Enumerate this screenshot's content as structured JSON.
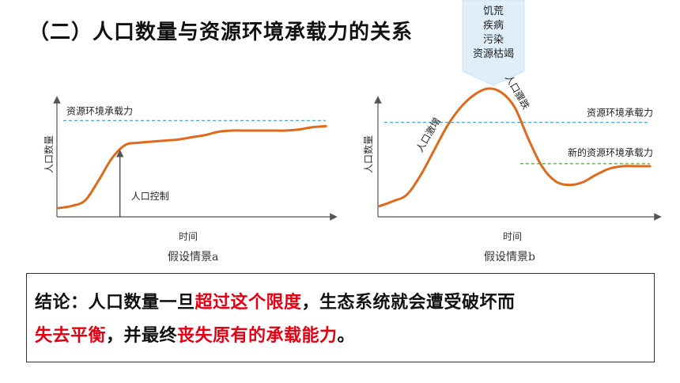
{
  "title": "（二）人口数量与资源环境承载力的关系",
  "callout": {
    "items": [
      "饥荒",
      "疾病",
      "污染",
      "资源枯竭"
    ],
    "bg_color": "#dfeef8"
  },
  "chart_data": [
    {
      "type": "line",
      "title": "假设情景a",
      "xlabel": "时间",
      "ylabel": "人口数量",
      "x": [
        0,
        5,
        10,
        15,
        20,
        25,
        30,
        35,
        40,
        45,
        50,
        55,
        60,
        65,
        70,
        75,
        80,
        85,
        90,
        95,
        100
      ],
      "series": [
        {
          "values": [
            5,
            7,
            12,
            30,
            50,
            62,
            64,
            65,
            66,
            67,
            69,
            71,
            74,
            75,
            75,
            75,
            75,
            75,
            76,
            78,
            79
          ],
          "color": "#e06a1b"
        }
      ],
      "reference_lines": [
        {
          "label": "资源环境承载力",
          "y": 84,
          "color": "#4aa8d8",
          "style": "dashed"
        }
      ],
      "annotations": [
        {
          "label": "人口控制",
          "x": 23
        }
      ],
      "ylim": [
        0,
        100
      ],
      "xlim": [
        0,
        100
      ]
    },
    {
      "type": "line",
      "title": "假设情景b",
      "xlabel": "时间",
      "ylabel": "人口数量",
      "x": [
        0,
        5,
        10,
        15,
        20,
        25,
        30,
        35,
        40,
        45,
        50,
        55,
        60,
        65,
        70,
        75,
        80,
        85,
        90,
        95,
        100
      ],
      "series": [
        {
          "values": [
            6,
            10,
            15,
            30,
            50,
            70,
            85,
            95,
            100,
            97,
            85,
            60,
            38,
            26,
            23,
            25,
            31,
            36,
            38,
            38,
            38
          ],
          "color": "#e06a1b"
        }
      ],
      "reference_lines": [
        {
          "label": "资源环境承载力",
          "y": 73,
          "color": "#4aa8d8",
          "style": "dashed"
        },
        {
          "label": "新的资源环境承载力",
          "y": 40,
          "color": "#6aa84f",
          "style": "dashed"
        }
      ],
      "annotations": [
        {
          "label": "人口激增",
          "x": 22
        },
        {
          "label": "人口骤跌",
          "x": 47
        }
      ],
      "ylim": [
        0,
        100
      ],
      "xlim": [
        0,
        100
      ]
    }
  ],
  "conclusion": {
    "prefix": "结论：人口数量一旦",
    "red1": "超过这个限度",
    "middle": "，生态系统就会遭受破坏而",
    "red2a": "失去平衡",
    "middle2": "，并最终",
    "red2b": "丧失原有的承载能力",
    "suffix": "。"
  }
}
